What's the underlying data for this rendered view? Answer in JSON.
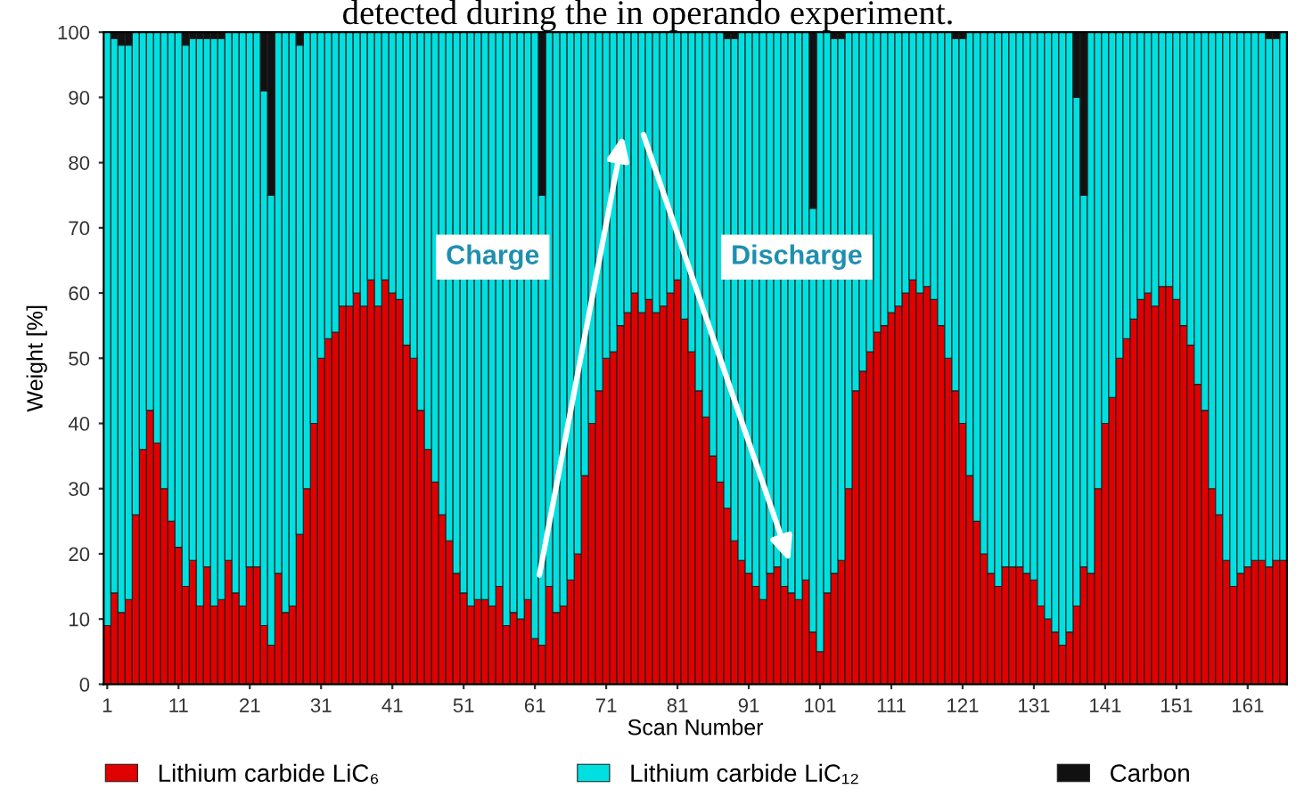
{
  "chart_data": {
    "type": "bar",
    "stacked": true,
    "xlabel": "Scan Number",
    "ylabel": "Weight [%]",
    "annotations": [
      "detected during the in operando experiment.",
      "Charge",
      "Discharge"
    ],
    "x": [
      1,
      2,
      3,
      4,
      5,
      6,
      7,
      8,
      9,
      10,
      11,
      12,
      13,
      14,
      15,
      16,
      17,
      18,
      19,
      20,
      21,
      22,
      23,
      24,
      25,
      26,
      27,
      28,
      29,
      30,
      31,
      32,
      33,
      34,
      35,
      36,
      37,
      38,
      39,
      40,
      41,
      42,
      43,
      44,
      45,
      46,
      47,
      48,
      49,
      50,
      51,
      52,
      53,
      54,
      55,
      56,
      57,
      58,
      59,
      60,
      61,
      62,
      63,
      64,
      65,
      66,
      67,
      68,
      69,
      70,
      71,
      72,
      73,
      74,
      75,
      76,
      77,
      78,
      79,
      80,
      81,
      82,
      83,
      84,
      85,
      86,
      87,
      88,
      89,
      90,
      91,
      92,
      93,
      94,
      95,
      96,
      97,
      98,
      99,
      100,
      101,
      102,
      103,
      104,
      105,
      106,
      107,
      108,
      109,
      110,
      111,
      112,
      113,
      114,
      115,
      116,
      117,
      118,
      119,
      120,
      121,
      122,
      123,
      124,
      125,
      126,
      127,
      128,
      129,
      130,
      131,
      132,
      133,
      134,
      135,
      136,
      137,
      138,
      139,
      140,
      141,
      142,
      143,
      144,
      145,
      146,
      147,
      148,
      149,
      150,
      151,
      152,
      153,
      154,
      155,
      156,
      157,
      158,
      159,
      160,
      161,
      162,
      163,
      164,
      165,
      166
    ],
    "xlim": [
      0.5,
      166.5
    ],
    "xticks": [
      1,
      11,
      21,
      31,
      41,
      51,
      61,
      71,
      81,
      91,
      101,
      111,
      121,
      131,
      141,
      151,
      161
    ],
    "ylim": [
      0,
      100
    ],
    "yticks": [
      0,
      10,
      20,
      30,
      40,
      50,
      60,
      70,
      80,
      90,
      100
    ],
    "grid": false,
    "legend": "bottom",
    "series": [
      {
        "name": "Lithium carbide LiC₆",
        "color": "#e00000",
        "values": [
          9,
          14,
          11,
          13,
          26,
          36,
          42,
          37,
          30,
          25,
          21,
          15,
          19,
          12,
          18,
          12,
          13,
          19,
          14,
          12,
          18,
          18,
          9,
          6,
          17,
          11,
          12,
          23,
          30,
          40,
          50,
          53,
          54,
          58,
          58,
          60,
          58,
          62,
          58,
          62,
          60,
          59,
          52,
          50,
          42,
          36,
          31,
          26,
          22,
          17,
          14,
          12,
          13,
          13,
          12,
          15,
          9,
          11,
          10,
          13,
          7,
          6,
          15,
          11,
          12,
          16,
          20,
          32,
          40,
          45,
          50,
          51,
          55,
          57,
          60,
          57,
          59,
          57,
          58,
          60,
          62,
          56,
          51,
          45,
          41,
          35,
          31,
          27,
          22,
          19,
          17,
          15,
          13,
          17,
          18,
          15,
          14,
          13,
          16,
          8,
          5,
          14,
          17,
          19,
          30,
          45,
          48,
          51,
          54,
          55,
          57,
          58,
          60,
          62,
          60,
          61,
          59,
          55,
          50,
          45,
          40,
          32,
          25,
          20,
          17,
          15,
          18,
          18,
          18,
          17,
          16,
          12,
          10,
          8,
          6,
          8,
          12,
          18,
          17,
          30,
          40,
          44,
          50,
          53,
          56,
          59,
          60,
          58,
          61,
          61,
          59,
          55,
          52,
          46,
          42,
          30,
          26,
          19,
          15,
          17,
          18,
          19,
          19,
          18,
          19,
          19
        ]
      },
      {
        "name": "Lithium carbide LiC₁₂",
        "color": "#00e0e0",
        "values": [
          91,
          85,
          87,
          85,
          74,
          64,
          58,
          63,
          70,
          75,
          79,
          83,
          80,
          87,
          81,
          87,
          86,
          81,
          86,
          88,
          82,
          82,
          82,
          69,
          83,
          89,
          88,
          75,
          70,
          60,
          50,
          47,
          46,
          42,
          42,
          40,
          42,
          38,
          42,
          38,
          40,
          41,
          48,
          50,
          58,
          64,
          69,
          74,
          78,
          83,
          86,
          88,
          87,
          87,
          88,
          85,
          91,
          89,
          90,
          87,
          93,
          69,
          85,
          89,
          88,
          84,
          80,
          68,
          60,
          55,
          50,
          49,
          45,
          43,
          40,
          43,
          41,
          43,
          42,
          40,
          38,
          44,
          49,
          55,
          59,
          65,
          69,
          72,
          77,
          81,
          83,
          85,
          87,
          83,
          82,
          85,
          86,
          87,
          84,
          65,
          95,
          86,
          82,
          80,
          70,
          55,
          52,
          49,
          46,
          45,
          43,
          42,
          40,
          38,
          40,
          39,
          41,
          45,
          50,
          54,
          59,
          68,
          75,
          80,
          83,
          85,
          82,
          82,
          82,
          83,
          84,
          88,
          90,
          92,
          94,
          92,
          78,
          57,
          83,
          70,
          60,
          56,
          50,
          47,
          44,
          41,
          40,
          42,
          39,
          39,
          41,
          45,
          48,
          54,
          58,
          70,
          74,
          81,
          85,
          83,
          82,
          81,
          81,
          81,
          80,
          81
        ]
      },
      {
        "name": "Carbon",
        "color": "#111111",
        "values": [
          0,
          1,
          2,
          2,
          0,
          0,
          0,
          0,
          0,
          0,
          0,
          2,
          1,
          1,
          1,
          1,
          1,
          0,
          0,
          0,
          0,
          0,
          9,
          25,
          0,
          0,
          0,
          2,
          0,
          0,
          0,
          0,
          0,
          0,
          0,
          0,
          0,
          0,
          0,
          0,
          0,
          0,
          0,
          0,
          0,
          0,
          0,
          0,
          0,
          0,
          0,
          0,
          0,
          0,
          0,
          0,
          0,
          0,
          0,
          0,
          0,
          25,
          0,
          0,
          0,
          0,
          0,
          0,
          0,
          0,
          0,
          0,
          0,
          0,
          0,
          0,
          0,
          0,
          0,
          0,
          0,
          0,
          0,
          0,
          0,
          0,
          0,
          1,
          1,
          0,
          0,
          0,
          0,
          0,
          0,
          0,
          0,
          0,
          0,
          27,
          0,
          0,
          1,
          1,
          0,
          0,
          0,
          0,
          0,
          0,
          0,
          0,
          0,
          0,
          0,
          0,
          0,
          0,
          0,
          1,
          1,
          0,
          0,
          0,
          0,
          0,
          0,
          0,
          0,
          0,
          0,
          0,
          0,
          0,
          0,
          0,
          10,
          25,
          0,
          0,
          0,
          0,
          0,
          0,
          0,
          0,
          0,
          0,
          0,
          0,
          0,
          0,
          0,
          0,
          0,
          0,
          0,
          0,
          0,
          0,
          0,
          0,
          0,
          1,
          1,
          0
        ]
      }
    ]
  }
}
